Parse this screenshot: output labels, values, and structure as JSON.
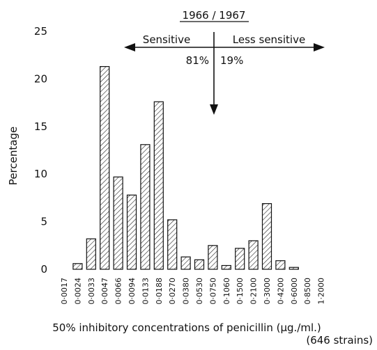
{
  "chart_data": {
    "type": "bar",
    "title": "1966 / 1967",
    "xlabel": "50% inhibitory concentrations of penicillin (µg./ml.)",
    "xlabel_note": "(646 strains)",
    "ylabel": "Percentage",
    "ylim": [
      0,
      25
    ],
    "yticks": [
      "0",
      "5",
      "10",
      "15",
      "20",
      "25"
    ],
    "grid": false,
    "bar_fill": "hatched",
    "categories": [
      "0·0017",
      "0·0024",
      "0·0033",
      "0·0047",
      "0·0066",
      "0·0094",
      "0·0133",
      "0·0188",
      "0·0270",
      "0·0380",
      "0·0530",
      "0·0750",
      "0·1060",
      "0·1500",
      "0·2100",
      "0·3000",
      "0·4200",
      "0·6000",
      "0·8500",
      "1·2000"
    ],
    "values": [
      0,
      0.6,
      3.2,
      21.3,
      9.7,
      7.8,
      13.1,
      17.6,
      5.2,
      1.3,
      1.0,
      2.5,
      0.4,
      2.2,
      3.0,
      6.9,
      0.9,
      0.2,
      0,
      0
    ],
    "annotations": {
      "left_label": "Sensitive",
      "right_label": "Less sensitive",
      "left_pct": "81%",
      "right_pct": "19%"
    }
  }
}
